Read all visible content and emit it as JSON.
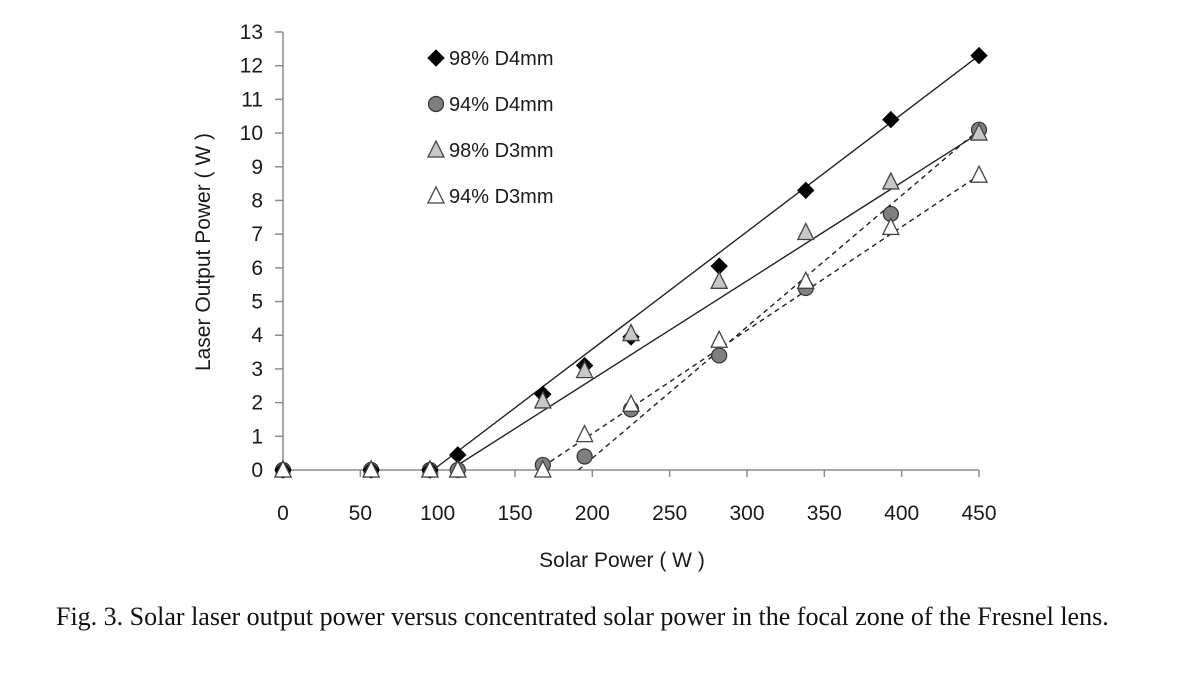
{
  "chart_data": {
    "type": "scatter",
    "xlabel": "Solar Power ( W )",
    "ylabel": "Laser Output  Power ( W )",
    "xlim": [
      0,
      450
    ],
    "ylim": [
      0,
      13
    ],
    "xticks": [
      0,
      50,
      100,
      150,
      200,
      250,
      300,
      350,
      400,
      450
    ],
    "yticks": [
      0,
      1,
      2,
      3,
      4,
      5,
      6,
      7,
      8,
      9,
      10,
      11,
      12,
      13
    ],
    "grid": false,
    "legend_position": "top-left",
    "series": [
      {
        "name": "98% D4mm",
        "marker": "diamond",
        "marker_fill": "#000000",
        "marker_stroke": "#000000",
        "points": [
          [
            0,
            0
          ],
          [
            57,
            0
          ],
          [
            95,
            0
          ],
          [
            113,
            0.45
          ],
          [
            168,
            2.25
          ],
          [
            195,
            3.1
          ],
          [
            225,
            3.95
          ],
          [
            282,
            6.05
          ],
          [
            338,
            8.3
          ],
          [
            393,
            10.4
          ],
          [
            450,
            12.3
          ]
        ],
        "fit_line": {
          "style": "solid",
          "from": [
            97,
            0
          ],
          "to": [
            450,
            12.3
          ]
        }
      },
      {
        "name": "94% D4mm",
        "marker": "circle",
        "marker_fill": "#7f7f7f",
        "marker_stroke": "#333333",
        "points": [
          [
            0,
            0
          ],
          [
            57,
            0
          ],
          [
            95,
            0
          ],
          [
            113,
            0
          ],
          [
            168,
            0.15
          ],
          [
            195,
            0.4
          ],
          [
            225,
            1.8
          ],
          [
            282,
            3.4
          ],
          [
            338,
            5.4
          ],
          [
            393,
            7.6
          ],
          [
            450,
            10.1
          ]
        ],
        "fit_line": {
          "style": "dashed",
          "from": [
            191,
            0
          ],
          "to": [
            450,
            10.1
          ]
        }
      },
      {
        "name": "98% D3mm",
        "marker": "triangle",
        "marker_fill": "#c8c8c8",
        "marker_stroke": "#444444",
        "points": [
          [
            0,
            0
          ],
          [
            57,
            0
          ],
          [
            95,
            0
          ],
          [
            113,
            0
          ],
          [
            168,
            2.05
          ],
          [
            195,
            2.95
          ],
          [
            225,
            4.05
          ],
          [
            282,
            5.6
          ],
          [
            338,
            7.05
          ],
          [
            393,
            8.55
          ],
          [
            450,
            10.0
          ]
        ],
        "fit_line": {
          "style": "solid",
          "from": [
            108,
            0
          ],
          "to": [
            450,
            10.0
          ]
        }
      },
      {
        "name": "94% D3mm",
        "marker": "triangle",
        "marker_fill": "#ffffff",
        "marker_stroke": "#444444",
        "points": [
          [
            0,
            0
          ],
          [
            57,
            0
          ],
          [
            95,
            0
          ],
          [
            113,
            0
          ],
          [
            168,
            0
          ],
          [
            195,
            1.05
          ],
          [
            225,
            1.95
          ],
          [
            282,
            3.85
          ],
          [
            338,
            5.6
          ],
          [
            393,
            7.2
          ],
          [
            450,
            8.75
          ]
        ],
        "fit_line": {
          "style": "dashed",
          "from": [
            168,
            0.1
          ],
          "to": [
            450,
            8.75
          ]
        }
      }
    ]
  },
  "caption": "Fig. 3. Solar laser output power versus concentrated solar power in the focal zone of the Fresnel lens.",
  "colors": {
    "axis": "#8c8c8c",
    "fit_line": "#222222",
    "text": "#1a1a1a"
  }
}
